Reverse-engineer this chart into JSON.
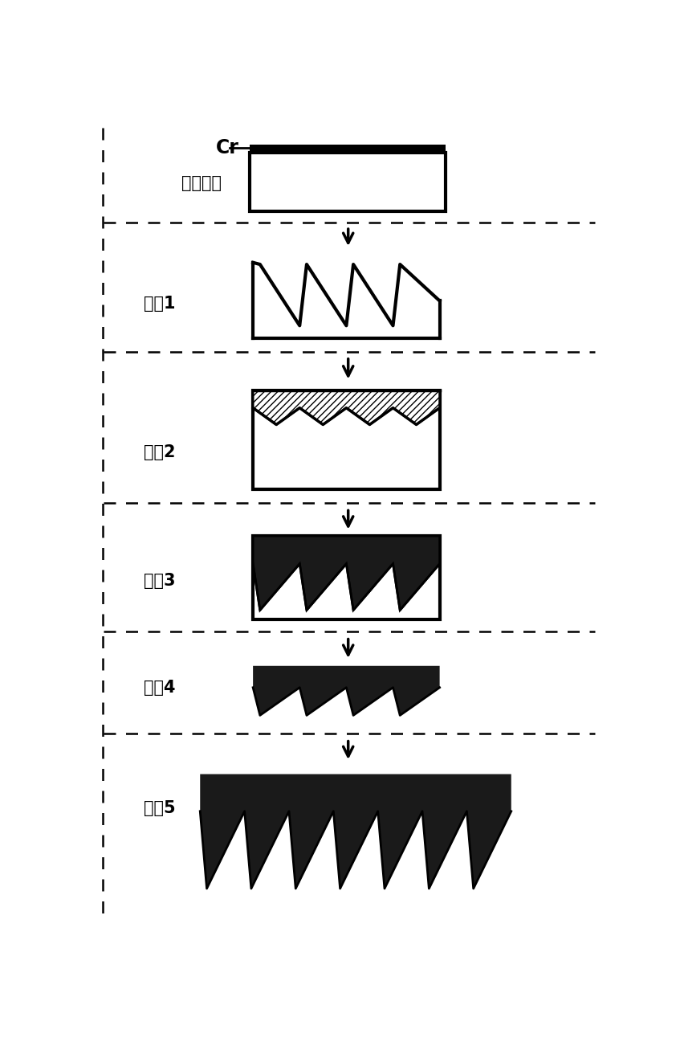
{
  "bg_color": "#ffffff",
  "text_color": "#000000",
  "cr_label": "Cr",
  "base_label": "石英基底",
  "step_labels": [
    "步骤1",
    "步骤2",
    "步骤3",
    "步骤4",
    "步骤5"
  ],
  "num_teeth_steps_1_4": 4,
  "num_teeth_step5": 7
}
